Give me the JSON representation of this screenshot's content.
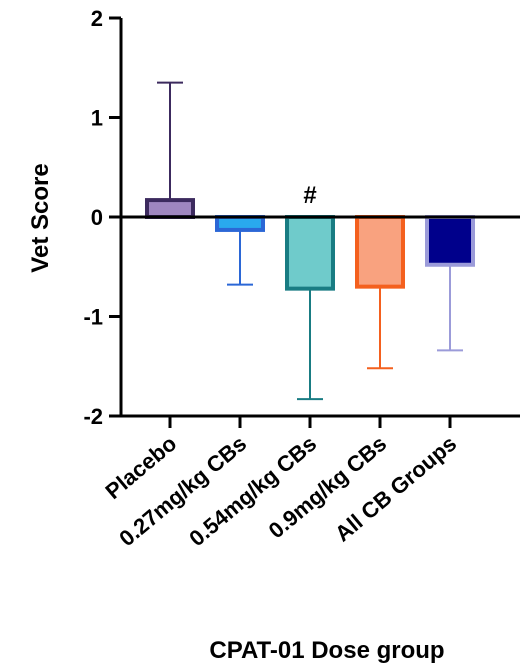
{
  "chart_data": {
    "type": "bar",
    "title": "",
    "xlabel": "CPAT-01 Dose group",
    "ylabel": "Vet Score",
    "ylim": [
      -2,
      2
    ],
    "yticks": [
      "-2",
      "-1",
      "0",
      "1",
      "2"
    ],
    "grid": false,
    "categories": [
      "Placebo",
      "0.27mg/kg CBs",
      "0.54mg/kg CBs",
      "0.9mg/kg CBs",
      "All CB Groups"
    ],
    "values": [
      0.17,
      -0.13,
      -0.72,
      -0.7,
      -0.48
    ],
    "error_bars": [
      1.18,
      0.55,
      1.11,
      0.82,
      0.86
    ],
    "annotations": [
      {
        "category": "0.54mg/kg CBs",
        "text": "#"
      }
    ],
    "colors": {
      "fill": [
        "#9f86c0",
        "#29a9ee",
        "#6fcbcb",
        "#f9a27f",
        "#00008b"
      ],
      "stroke": [
        "#3c2a5e",
        "#2b67d6",
        "#197c83",
        "#f4601e",
        "#9b9bd9"
      ]
    }
  }
}
